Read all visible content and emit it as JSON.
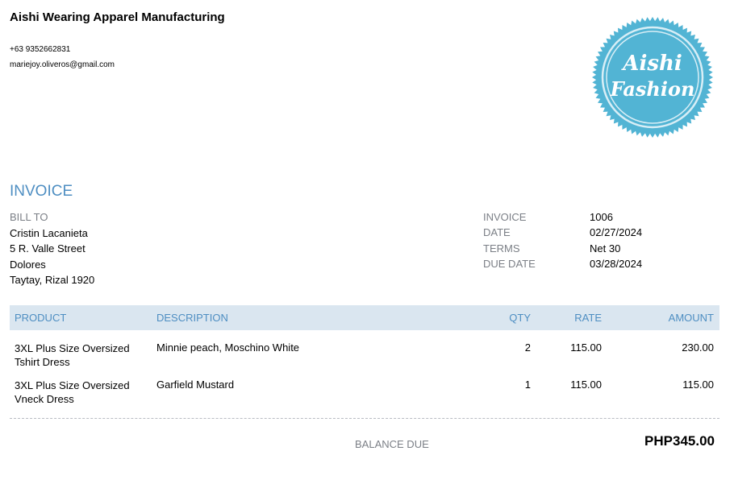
{
  "company": {
    "name": "Aishi Wearing Apparel Manufacturing",
    "phone": "+63 9352662831",
    "email": "mariejoy.oliveros@gmail.com",
    "logo_text": "Aishi Fashion",
    "logo_color": "#52b4d4"
  },
  "title": "INVOICE",
  "bill_to": {
    "label": "BILL TO",
    "lines": [
      "Cristin Lacanieta",
      "5 R. Valle Street",
      "Dolores",
      "Taytay, Rizal  1920"
    ]
  },
  "meta": [
    {
      "label": "INVOICE",
      "value": "1006"
    },
    {
      "label": "DATE",
      "value": "02/27/2024"
    },
    {
      "label": "TERMS",
      "value": "Net 30"
    },
    {
      "label": "DUE DATE",
      "value": "03/28/2024"
    }
  ],
  "table": {
    "headers": {
      "product": "PRODUCT",
      "description": "DESCRIPTION",
      "qty": "QTY",
      "rate": "RATE",
      "amount": "AMOUNT"
    },
    "rows": [
      {
        "product": "3XL Plus Size Oversized Tshirt Dress",
        "description": "Minnie peach, Moschino White",
        "qty": "2",
        "rate": "115.00",
        "amount": "230.00"
      },
      {
        "product": "3XL Plus Size Oversized Vneck Dress",
        "description": "Garfield Mustard",
        "qty": "1",
        "rate": "115.00",
        "amount": "115.00"
      }
    ]
  },
  "balance": {
    "label": "BALANCE DUE",
    "value": "PHP345.00"
  }
}
